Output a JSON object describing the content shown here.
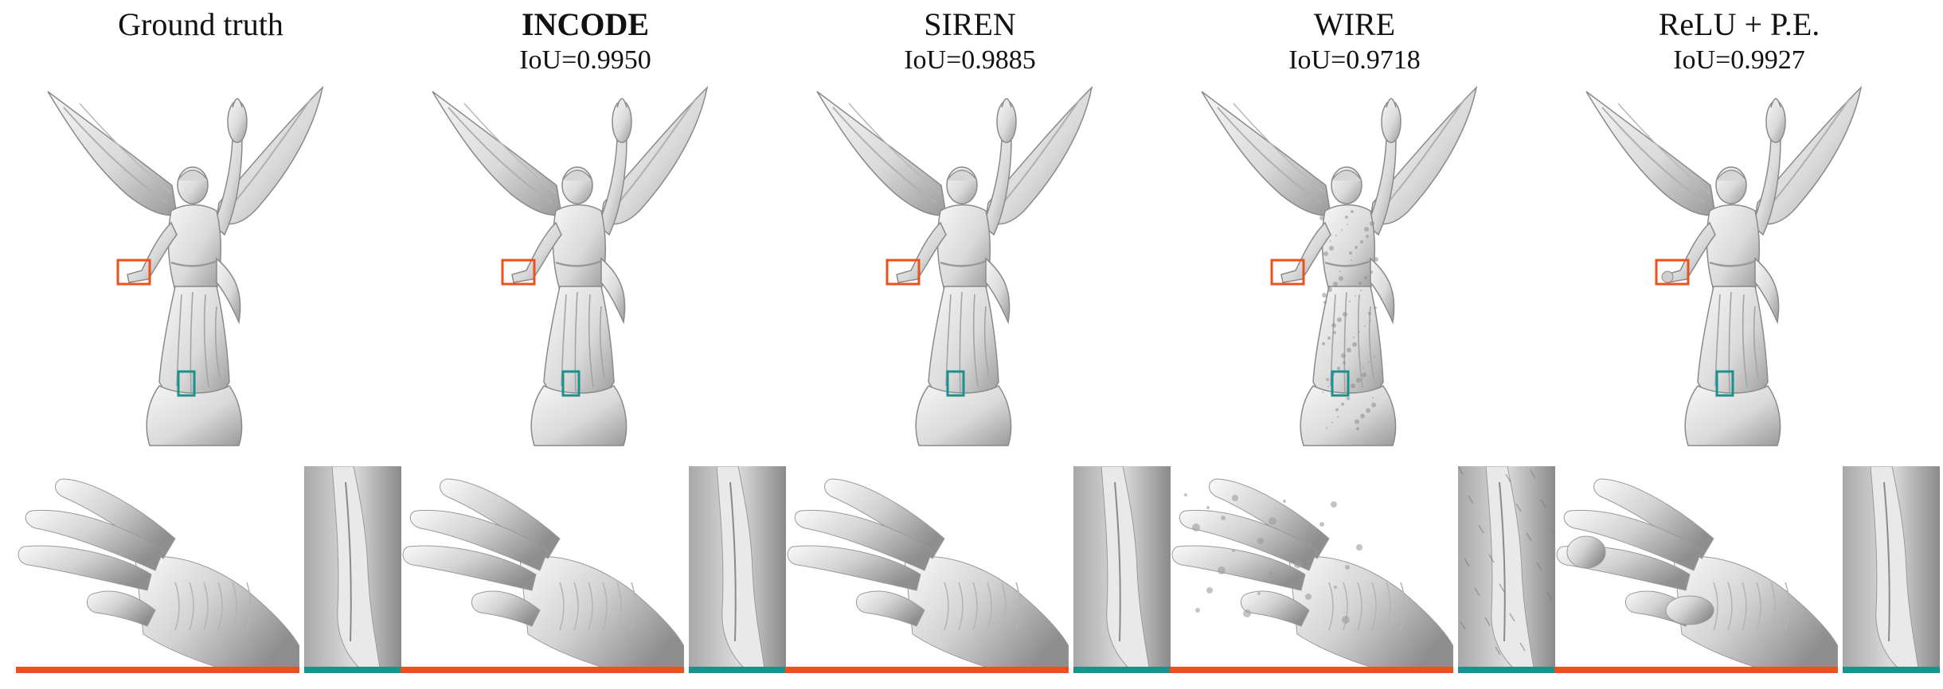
{
  "colors": {
    "hand_box": "#e8521e",
    "foot_box": "#1a918d",
    "statue_fill": "#dadada",
    "statue_shade": "#9a9a9a",
    "statue_highlight": "#f6f6f6"
  },
  "panels": [
    {
      "name": "Ground truth",
      "iou": "",
      "bold": false,
      "quality": "clean"
    },
    {
      "name": "INCODE",
      "iou": "IoU=0.9950",
      "bold": true,
      "quality": "clean"
    },
    {
      "name": "SIREN",
      "iou": "IoU=0.9885",
      "bold": false,
      "quality": "clean"
    },
    {
      "name": "WIRE",
      "iou": "IoU=0.9718",
      "bold": false,
      "quality": "noisy"
    },
    {
      "name": "ReLU + P.E.",
      "iou": "IoU=0.9927",
      "bold": false,
      "quality": "blobby"
    }
  ]
}
